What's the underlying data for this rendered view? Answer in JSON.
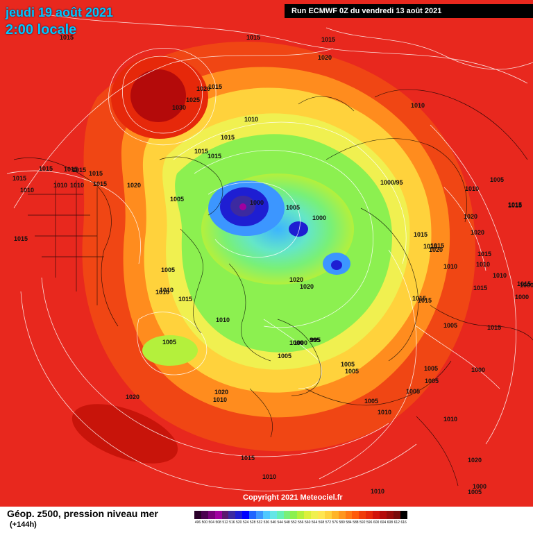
{
  "header": {
    "date": "jeudi 19 août 2021",
    "time": "2:00 locale",
    "run": "Run ECMWF 0Z du vendredi 13 août 2021"
  },
  "copyright": "Copyright 2021 Meteociel.fr",
  "footer": {
    "title": "Géop. z500, pression niveau mer",
    "subtitle": "(+144h)"
  },
  "scale": {
    "labels": [
      "496",
      "500",
      "504",
      "508",
      "512",
      "516",
      "520",
      "524",
      "528",
      "532",
      "536",
      "540",
      "544",
      "548",
      "552",
      "556",
      "560",
      "564",
      "568",
      "572",
      "576",
      "580",
      "584",
      "588",
      "592",
      "596",
      "600",
      "604",
      "608",
      "612",
      "616"
    ],
    "colors": [
      "#2a002a",
      "#4b0050",
      "#78007a",
      "#a000a0",
      "#5a1a6e",
      "#3c2aa0",
      "#1e1ed2",
      "#0000ff",
      "#1e64ff",
      "#3c96ff",
      "#50c8ff",
      "#64e6e6",
      "#64f0b4",
      "#78f078",
      "#8cf050",
      "#b4f03c",
      "#dcf03c",
      "#f0f050",
      "#ffe650",
      "#ffd23c",
      "#ffb428",
      "#ff961e",
      "#ff7814",
      "#ff5a0a",
      "#f03c0a",
      "#e6280a",
      "#d2140a",
      "#b40a0a",
      "#960a0a",
      "#780a0a",
      "#000000"
    ]
  },
  "pressure_labels": [
    "1015",
    "1015",
    "1015",
    "1020",
    "1030",
    "1025",
    "1020",
    "1015",
    "1010",
    "1015",
    "1015",
    "1015",
    "1005",
    "1000",
    "1005",
    "1000",
    "1000/95",
    "1010",
    "1005",
    "1015",
    "1010",
    "1015",
    "1020",
    "1015",
    "1010",
    "1010",
    "1020",
    "1015",
    "1015",
    "1010",
    "1015",
    "1020",
    "1020",
    "1005",
    "1010",
    "1015",
    "1010",
    "1020",
    "1015",
    "1015",
    "1015",
    "1000",
    "995",
    "1005",
    "1005",
    "1005",
    "1010",
    "1005",
    "1005",
    "1005",
    "1000",
    "1020",
    "1020",
    "1010",
    "1010",
    "1020",
    "1005",
    "1010",
    "1005",
    "1000",
    "1000",
    "1015",
    "1015",
    "1010",
    "1015",
    "1015",
    "1020",
    "1015",
    "1000",
    "1015",
    "1010",
    "1015",
    "1010",
    "1010",
    "1005",
    "1000",
    "995",
    "1010",
    "1005",
    "1015",
    "1015",
    "1015"
  ]
}
